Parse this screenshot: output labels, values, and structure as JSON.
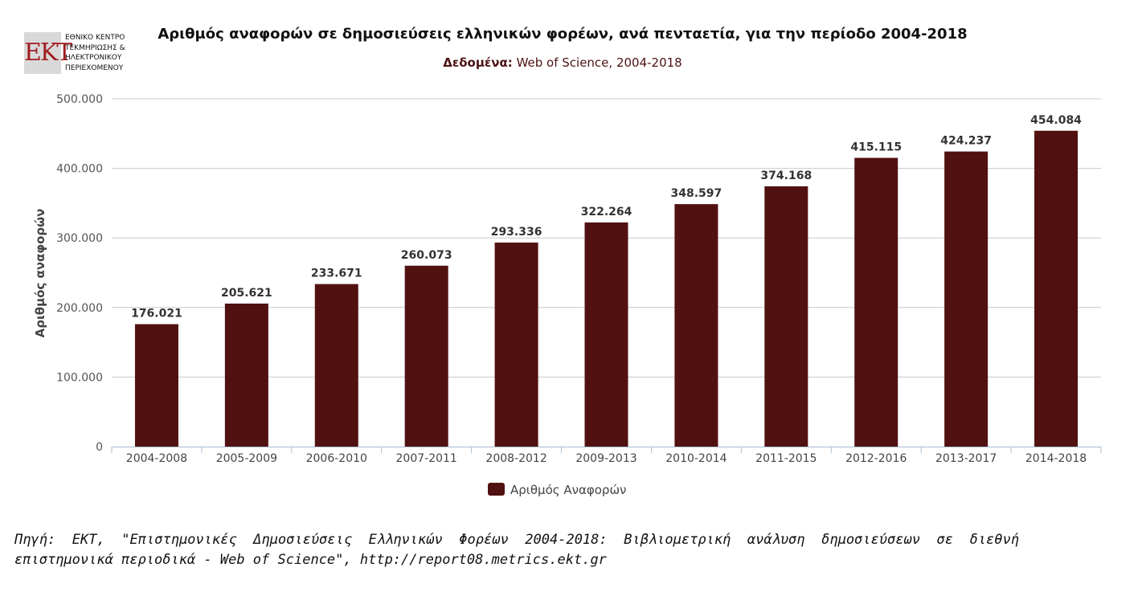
{
  "logo": {
    "mark": "ΕΚΤ",
    "lines": [
      "ΕΘΝΙΚΟ ΚΕΝΤΡΟ",
      "ΤΕΚΜΗΡΙΩΣΗΣ &",
      "ΗΛΕΚΤΡΟΝΙΚΟΥ",
      "ΠΕΡΙΕΧΟΜΕΝΟΥ"
    ]
  },
  "footnote": "Πηγή: ΕΚΤ, \"Επιστημονικές Δημοσιεύσεις Ελληνικών Φορέων 2004-2018: Βιβλιομετρική ανάλυση δημοσιεύσεων σε διεθνή επιστημονικά περιοδικά - Web of Science\", http://report08.metrics.ekt.gr",
  "chart_data": {
    "type": "bar",
    "title": "Αριθμός αναφορών σε δημοσιεύσεις ελληνικών φορέων, ανά πενταετία, για την περίοδο 2004-2018",
    "subtitle_label": "Δεδομένα:",
    "subtitle_value": "Web of Science, 2004-2018",
    "ylabel": "Αριθμός αναφορών",
    "xlabel": "",
    "ylim": [
      0,
      500000
    ],
    "yticks": [
      0,
      100000,
      200000,
      300000,
      400000,
      500000
    ],
    "ytick_labels": [
      "0",
      "100.000",
      "200.000",
      "300.000",
      "400.000",
      "500.000"
    ],
    "categories": [
      "2004-2008",
      "2005-2009",
      "2006-2010",
      "2007-2011",
      "2008-2012",
      "2009-2013",
      "2010-2014",
      "2011-2015",
      "2012-2016",
      "2013-2017",
      "2014-2018"
    ],
    "series": [
      {
        "name": "Αριθμός Αναφορών",
        "color": "#511111",
        "values": [
          176021,
          205621,
          233671,
          260073,
          293336,
          322264,
          348597,
          374168,
          415115,
          424237,
          454084
        ],
        "value_labels": [
          "176.021",
          "205.621",
          "233.671",
          "260.073",
          "293.336",
          "322.264",
          "348.597",
          "374.168",
          "415.115",
          "424.237",
          "454.084"
        ]
      }
    ],
    "grid": true,
    "legend": "bottom-center"
  }
}
